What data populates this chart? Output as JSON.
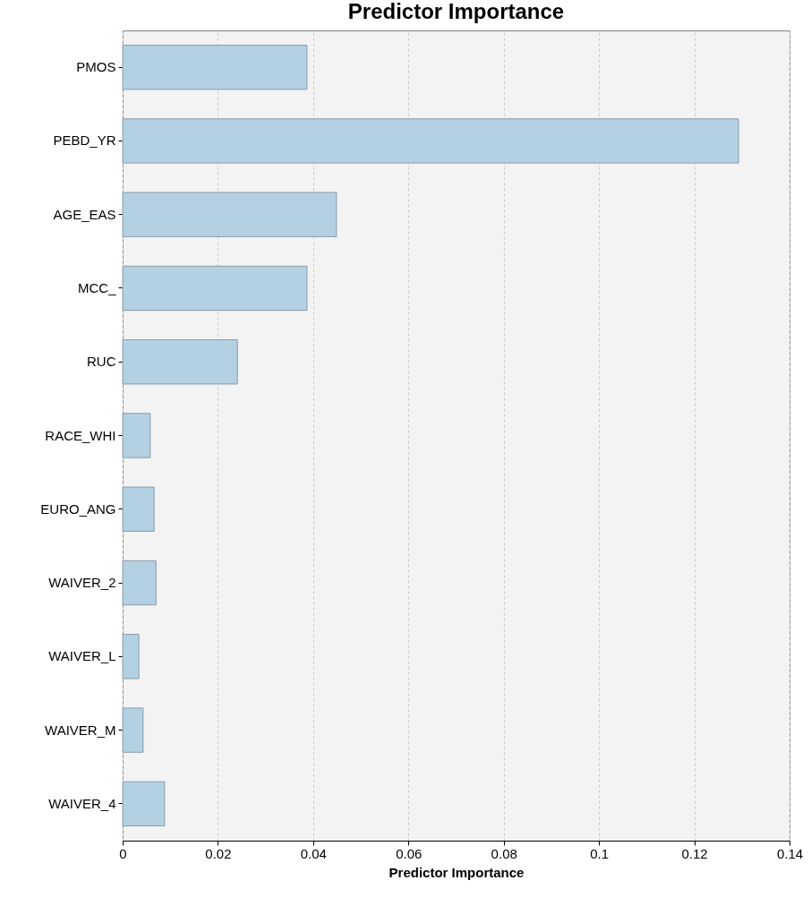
{
  "chart_data": {
    "type": "bar",
    "title": "Predictor Importance",
    "xlabel": "Predictor Importance",
    "orientation": "horizontal",
    "categories": [
      "PMOS",
      "PEBD_YR",
      "AGE_EAS",
      "MCC_",
      "RUC",
      "RACE_WHI",
      "EURO_ANG",
      "WAIVER_2",
      "WAIVER_L",
      "WAIVER_M",
      "WAIVER_4"
    ],
    "values": [
      0.0387,
      0.1293,
      0.0449,
      0.0387,
      0.0241,
      0.0058,
      0.0066,
      0.007,
      0.0034,
      0.0043,
      0.0088
    ],
    "color": "#b3d1e3",
    "xlim": [
      0,
      0.14
    ],
    "xticks": [
      0,
      0.02,
      0.04,
      0.06,
      0.08,
      0.1,
      0.12,
      0.14
    ],
    "grid": "x"
  }
}
